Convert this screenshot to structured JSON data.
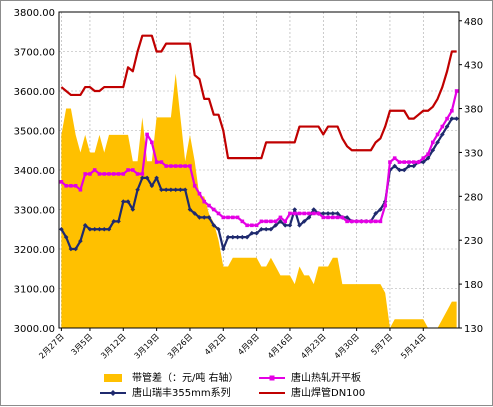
{
  "chart_data": {
    "type": "line",
    "title": "",
    "xlabel": "",
    "ylabel": "",
    "grid": true,
    "legend_position": "bottom",
    "ylim": [
      3000,
      3800
    ],
    "y_ticks": [
      "3000.00",
      "3100.00",
      "3200.00",
      "3300.00",
      "3400.00",
      "3500.00",
      "3600.00",
      "3700.00",
      "3800.00"
    ],
    "y2lim": [
      130,
      490
    ],
    "y2_ticks": [
      "130",
      "180",
      "230",
      "280",
      "330",
      "380",
      "430",
      "480"
    ],
    "x_tick_labels": [
      "2月27日",
      "3月5日",
      "3月12日",
      "3月19日",
      "3月26日",
      "4月2日",
      "4月9日",
      "4月16日",
      "4月23日",
      "4月30日",
      "5月7日",
      "5月14日"
    ],
    "x_tick_index": [
      0,
      6,
      13,
      20,
      27,
      34,
      41,
      48,
      55,
      62,
      69,
      76
    ],
    "point_count": 84,
    "series": [
      {
        "name": "带管差（：元/吨 右轴）",
        "type": "area",
        "axis": "right",
        "color": "#ffc000",
        "marker": "none",
        "values": [
          350,
          380,
          380,
          350,
          330,
          350,
          330,
          330,
          350,
          330,
          350,
          350,
          350,
          350,
          350,
          320,
          320,
          370,
          320,
          320,
          370,
          370,
          370,
          370,
          420,
          370,
          320,
          350,
          320,
          280,
          280,
          260,
          250,
          230,
          200,
          200,
          210,
          210,
          210,
          210,
          210,
          210,
          200,
          200,
          210,
          200,
          190,
          190,
          190,
          180,
          200,
          190,
          190,
          180,
          200,
          200,
          200,
          210,
          210,
          180,
          180,
          180,
          180,
          180,
          180,
          180,
          180,
          180,
          170,
          130,
          140,
          140,
          140,
          140,
          140,
          140,
          140,
          130,
          130,
          130,
          140,
          150,
          160,
          160
        ]
      },
      {
        "name": "唐山瑞丰355mm系列",
        "type": "line",
        "axis": "left",
        "color": "#1f2a6e",
        "marker": "diamond",
        "values": [
          3250,
          3230,
          3200,
          3200,
          3220,
          3260,
          3250,
          3250,
          3250,
          3250,
          3250,
          3270,
          3270,
          3320,
          3320,
          3300,
          3350,
          3380,
          3380,
          3360,
          3380,
          3350,
          3350,
          3350,
          3350,
          3350,
          3350,
          3300,
          3290,
          3280,
          3280,
          3280,
          3260,
          3250,
          3200,
          3230,
          3230,
          3230,
          3230,
          3230,
          3240,
          3240,
          3250,
          3250,
          3250,
          3260,
          3270,
          3260,
          3260,
          3300,
          3260,
          3270,
          3280,
          3300,
          3290,
          3290,
          3290,
          3290,
          3290,
          3280,
          3280,
          3270,
          3270,
          3270,
          3270,
          3270,
          3290,
          3300,
          3320,
          3400,
          3410,
          3400,
          3400,
          3410,
          3410,
          3420,
          3420,
          3430,
          3450,
          3470,
          3490,
          3510,
          3530,
          3530
        ]
      },
      {
        "name": "唐山热轧开平板",
        "type": "line",
        "axis": "left",
        "color": "#e400e4",
        "marker": "square",
        "values": [
          3370,
          3360,
          3360,
          3360,
          3350,
          3390,
          3390,
          3400,
          3390,
          3390,
          3390,
          3390,
          3390,
          3390,
          3400,
          3400,
          3390,
          3390,
          3490,
          3470,
          3420,
          3420,
          3410,
          3410,
          3410,
          3410,
          3410,
          3410,
          3360,
          3340,
          3320,
          3310,
          3300,
          3290,
          3280,
          3280,
          3280,
          3280,
          3270,
          3260,
          3260,
          3260,
          3270,
          3270,
          3270,
          3270,
          3280,
          3270,
          3290,
          3290,
          3290,
          3290,
          3290,
          3290,
          3290,
          3280,
          3280,
          3280,
          3280,
          3280,
          3270,
          3270,
          3270,
          3270,
          3270,
          3270,
          3270,
          3270,
          3310,
          3420,
          3430,
          3420,
          3420,
          3420,
          3420,
          3420,
          3430,
          3440,
          3470,
          3490,
          3510,
          3530,
          3550,
          3600
        ]
      },
      {
        "name": "唐山焊管DN100",
        "type": "line",
        "axis": "left",
        "color": "#c00000",
        "marker": "none",
        "values": [
          3610,
          3600,
          3590,
          3590,
          3590,
          3610,
          3610,
          3600,
          3600,
          3610,
          3610,
          3610,
          3610,
          3610,
          3660,
          3650,
          3700,
          3740,
          3740,
          3740,
          3700,
          3700,
          3720,
          3720,
          3720,
          3720,
          3720,
          3720,
          3640,
          3630,
          3580,
          3580,
          3540,
          3540,
          3500,
          3430,
          3430,
          3430,
          3430,
          3430,
          3430,
          3430,
          3430,
          3470,
          3470,
          3470,
          3470,
          3470,
          3470,
          3470,
          3510,
          3510,
          3510,
          3510,
          3510,
          3490,
          3510,
          3510,
          3510,
          3480,
          3460,
          3450,
          3450,
          3450,
          3450,
          3450,
          3470,
          3480,
          3510,
          3550,
          3550,
          3550,
          3550,
          3530,
          3530,
          3540,
          3550,
          3550,
          3560,
          3580,
          3610,
          3650,
          3700,
          3700
        ]
      }
    ]
  }
}
